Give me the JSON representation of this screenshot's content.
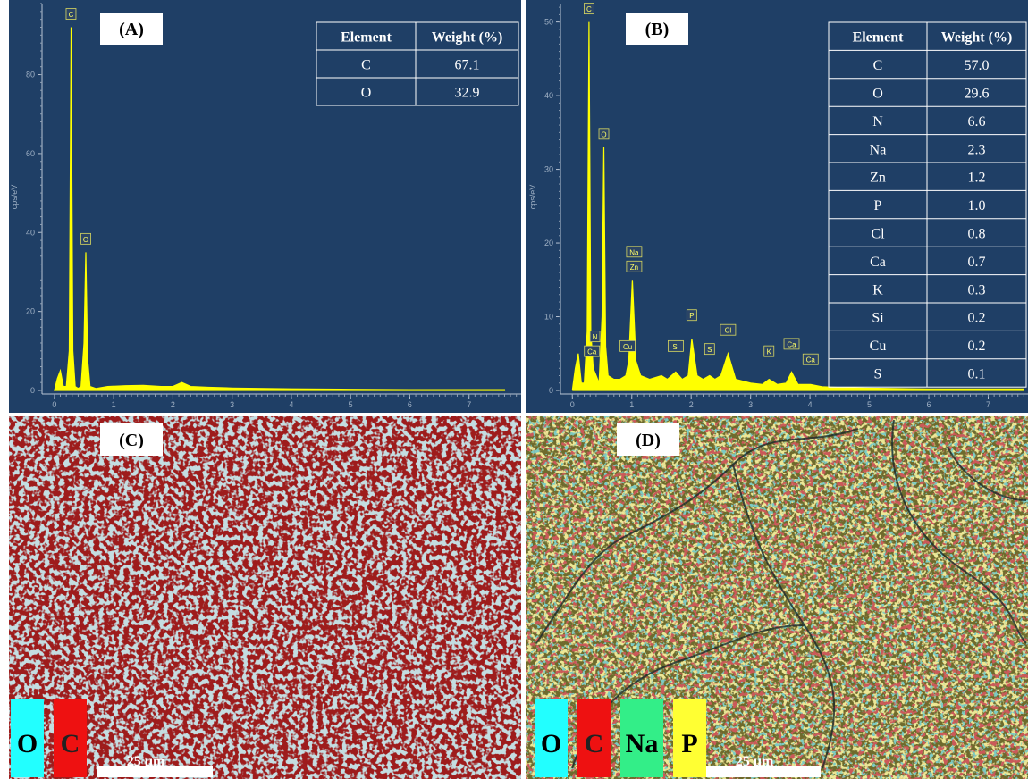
{
  "chart_data": [
    {
      "type": "area",
      "panel": "(A)",
      "ylabel": "cps/eV",
      "color": "#ffff00",
      "xlim": [
        -0.21,
        7.88
      ],
      "ylim": [
        0,
        98
      ],
      "xticks": [
        0,
        1,
        2,
        3,
        4,
        5,
        6,
        7
      ],
      "yticks": [
        0,
        20,
        40,
        60,
        80
      ],
      "x": [
        0,
        0.05,
        0.1,
        0.15,
        0.2,
        0.25,
        0.28,
        0.31,
        0.35,
        0.4,
        0.45,
        0.5,
        0.53,
        0.56,
        0.6,
        0.7,
        0.9,
        1.2,
        1.5,
        1.8,
        2.0,
        2.15,
        2.3,
        2.6,
        3,
        4,
        5,
        6,
        7,
        7.6
      ],
      "values": [
        0,
        3,
        5,
        1,
        1,
        10,
        92,
        10,
        1,
        0.5,
        1,
        12,
        35,
        8,
        1,
        0.5,
        1,
        1.2,
        1.3,
        1,
        1,
        2,
        1,
        0.8,
        0.6,
        0.4,
        0.3,
        0.2,
        0.2,
        0.2
      ],
      "annotations": [
        {
          "text": "C",
          "x": 0.28,
          "y": 92
        },
        {
          "text": "O",
          "x": 0.53,
          "y": 35
        }
      ],
      "table": {
        "header": [
          "Element",
          "Weight (%)"
        ],
        "rows": [
          [
            "C",
            67.1
          ],
          [
            "O",
            32.9
          ]
        ]
      }
    },
    {
      "type": "area",
      "panel": "(B)",
      "ylabel": "cps/eV",
      "color": "#ffff00",
      "xlim": [
        -0.2,
        7.67
      ],
      "ylim": [
        0,
        52.5
      ],
      "xticks": [
        0,
        1,
        2,
        3,
        4,
        5,
        6,
        7
      ],
      "yticks": [
        0,
        10,
        20,
        30,
        40,
        50
      ],
      "x": [
        0,
        0.05,
        0.1,
        0.15,
        0.2,
        0.25,
        0.28,
        0.31,
        0.35,
        0.4,
        0.45,
        0.5,
        0.53,
        0.56,
        0.6,
        0.7,
        0.8,
        0.9,
        0.95,
        1.01,
        1.07,
        1.15,
        1.3,
        1.5,
        1.6,
        1.74,
        1.85,
        1.95,
        2.01,
        2.1,
        2.2,
        2.31,
        2.4,
        2.5,
        2.62,
        2.75,
        3,
        3.2,
        3.31,
        3.45,
        3.6,
        3.69,
        3.8,
        4.01,
        4.2,
        4.5,
        5,
        6,
        7,
        7.6
      ],
      "values": [
        0,
        3,
        5,
        1,
        1,
        8,
        50,
        8,
        3,
        2,
        1,
        10,
        33,
        6,
        2,
        1.5,
        1.5,
        2,
        4,
        15,
        4,
        2,
        1.5,
        2,
        1.5,
        2.5,
        1.5,
        2,
        7,
        2,
        1.5,
        2,
        1.5,
        2,
        5,
        1.5,
        1,
        0.8,
        1.5,
        0.8,
        1,
        2.5,
        0.8,
        0.8,
        0.5,
        0.4,
        0.3,
        0.2,
        0.2,
        0.2
      ],
      "annotations": [
        {
          "text": "C",
          "x": 0.28,
          "y": 50
        },
        {
          "text": "O",
          "x": 0.53,
          "y": 33
        },
        {
          "text": "Na",
          "x": 1.04,
          "y": 17
        },
        {
          "text": "Zn",
          "x": 1.04,
          "y": 15
        },
        {
          "text": "N",
          "x": 0.38,
          "y": 5.5
        },
        {
          "text": "Ca",
          "x": 0.33,
          "y": 3.5
        },
        {
          "text": "Cu",
          "x": 0.93,
          "y": 4.2
        },
        {
          "text": "Si",
          "x": 1.74,
          "y": 4.2
        },
        {
          "text": "P",
          "x": 2.01,
          "y": 8.4
        },
        {
          "text": "S",
          "x": 2.31,
          "y": 3.8
        },
        {
          "text": "Cl",
          "x": 2.62,
          "y": 6.4
        },
        {
          "text": "K",
          "x": 3.31,
          "y": 3.5
        },
        {
          "text": "Ca",
          "x": 3.69,
          "y": 4.5
        },
        {
          "text": "Ca",
          "x": 4.01,
          "y": 2.4
        }
      ],
      "table": {
        "header": [
          "Element",
          "Weight (%)"
        ],
        "rows": [
          [
            "C",
            57.0
          ],
          [
            "O",
            29.6
          ],
          [
            "N",
            6.6
          ],
          [
            "Na",
            2.3
          ],
          [
            "Zn",
            1.2
          ],
          [
            "P",
            1.0
          ],
          [
            "Cl",
            0.8
          ],
          [
            "Ca",
            0.7
          ],
          [
            "K",
            0.3
          ],
          [
            "Si",
            0.2
          ],
          [
            "Cu",
            0.2
          ],
          [
            "S",
            0.1
          ]
        ]
      }
    }
  ],
  "maps": [
    {
      "panel": "(C)",
      "legend": [
        {
          "text": "O",
          "color": "#22ffff"
        },
        {
          "text": "C",
          "color": "#ee1111"
        }
      ],
      "scale_bar": "25 µm"
    },
    {
      "panel": "(D)",
      "legend": [
        {
          "text": "O",
          "color": "#22ffff"
        },
        {
          "text": "C",
          "color": "#ee1111"
        },
        {
          "text": "Na",
          "color": "#33ee88"
        },
        {
          "text": "P",
          "color": "#ffff33"
        }
      ],
      "scale_bar": "25 µm"
    }
  ]
}
